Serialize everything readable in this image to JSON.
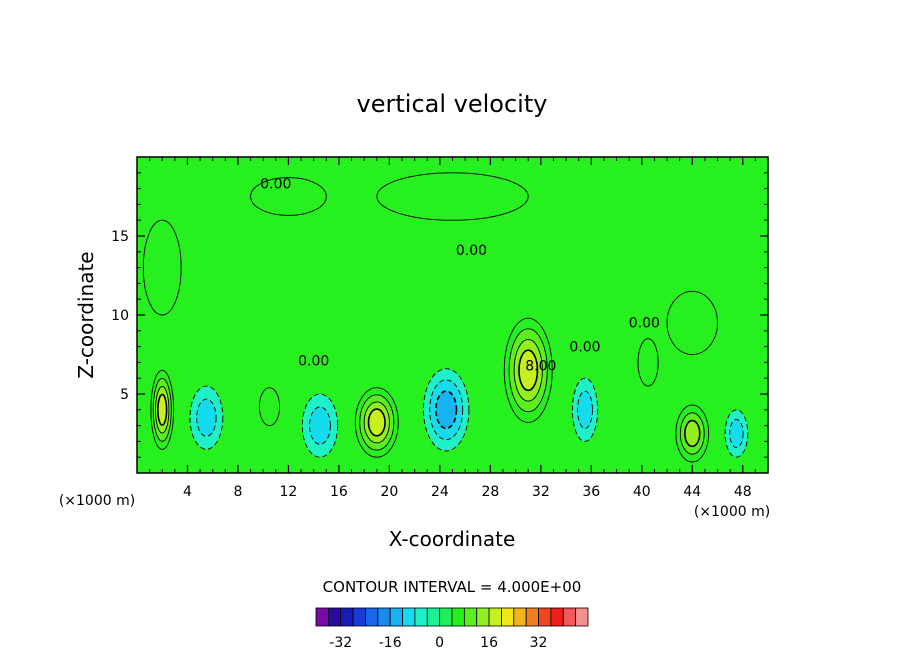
{
  "chart_data": {
    "type": "heatmap",
    "title": "vertical velocity",
    "xlabel": "X-coordinate",
    "ylabel": "Z-coordinate",
    "x_unit": "(×1000 m)",
    "y_unit": "(×1000 m)",
    "xlim": [
      0,
      50
    ],
    "ylim": [
      0,
      20
    ],
    "x_ticks": [
      4,
      8,
      12,
      16,
      20,
      24,
      28,
      32,
      36,
      40,
      44,
      48
    ],
    "y_ticks": [
      5,
      10,
      15
    ],
    "contour_interval_label": "CONTOUR INTERVAL = 4.000E+00",
    "contour_labels": [
      {
        "text": "0.00",
        "x": 11,
        "z": 18.0
      },
      {
        "text": "0.00",
        "x": 26.5,
        "z": 13.8
      },
      {
        "text": "0.00",
        "x": 14,
        "z": 6.8
      },
      {
        "text": "0.00",
        "x": 35.5,
        "z": 7.7
      },
      {
        "text": "0.00",
        "x": 40.2,
        "z": 9.2
      },
      {
        "text": "8.00",
        "x": 32,
        "z": 6.5
      }
    ],
    "features": [
      {
        "x": 2,
        "z": 4.0,
        "value": 14,
        "sx": 0.9,
        "sz": 2.5
      },
      {
        "x": 5.5,
        "z": 3.5,
        "value": -6,
        "sx": 1.3,
        "sz": 2.0
      },
      {
        "x": 10.5,
        "z": 4.2,
        "value": 4,
        "sx": 0.8,
        "sz": 1.2
      },
      {
        "x": 14.5,
        "z": 3.0,
        "value": -5,
        "sx": 1.4,
        "sz": 2.0
      },
      {
        "x": 19,
        "z": 3.2,
        "value": 14,
        "sx": 1.7,
        "sz": 2.2
      },
      {
        "x": 24.5,
        "z": 4.0,
        "value": -9,
        "sx": 1.8,
        "sz": 2.6
      },
      {
        "x": 31,
        "z": 6.5,
        "value": 16,
        "sx": 1.9,
        "sz": 3.3
      },
      {
        "x": 35.5,
        "z": 4.0,
        "value": -5,
        "sx": 1.0,
        "sz": 2.0
      },
      {
        "x": 40.5,
        "z": 7.0,
        "value": 4,
        "sx": 0.8,
        "sz": 1.5
      },
      {
        "x": 44,
        "z": 2.5,
        "value": 10,
        "sx": 1.3,
        "sz": 1.8
      },
      {
        "x": 47.5,
        "z": 2.5,
        "value": -5,
        "sx": 0.9,
        "sz": 1.5
      },
      {
        "x": 44,
        "z": 9.5,
        "value": 4,
        "sx": 2.0,
        "sz": 2.0
      },
      {
        "x": 2,
        "z": 13,
        "value": 3,
        "sx": 1.5,
        "sz": 3.0
      },
      {
        "x": 25,
        "z": 17.5,
        "value": 3,
        "sx": 6.0,
        "sz": 1.5
      },
      {
        "x": 12,
        "z": 17.5,
        "value": 3,
        "sx": 3.0,
        "sz": 1.2
      }
    ],
    "colorbar": {
      "colors": [
        "#7a0aa8",
        "#2c0aa0",
        "#1a1ab8",
        "#1a3ad8",
        "#1a66e8",
        "#1a8cf0",
        "#16b4f0",
        "#14dcec",
        "#1ef0c8",
        "#1ef096",
        "#1eee5a",
        "#26f01e",
        "#5af01e",
        "#92f01e",
        "#c8f01e",
        "#f0e61e",
        "#f0b41e",
        "#f07e1e",
        "#f0461e",
        "#f01e1e",
        "#f05a5a",
        "#f09090"
      ],
      "tick_labels": [
        "-32",
        "-16",
        "0",
        "16",
        "32"
      ],
      "tick_values": [
        -32,
        -16,
        0,
        16,
        32
      ],
      "vmin": -40,
      "vmax": 48
    }
  }
}
